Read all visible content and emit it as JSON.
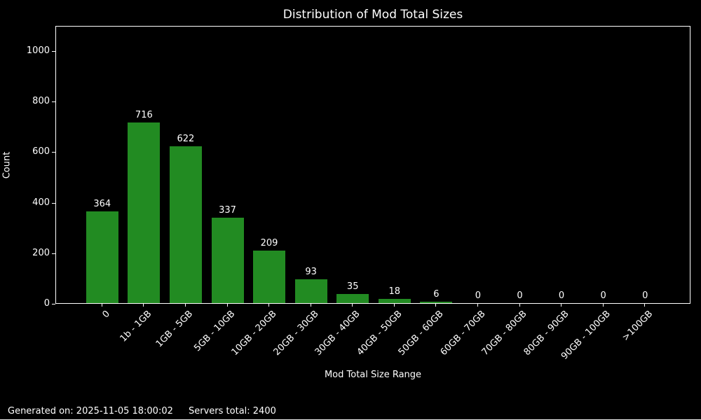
{
  "chart_data": {
    "type": "bar",
    "title": "Distribution of Mod Total Sizes",
    "xlabel": "Mod Total Size Range",
    "ylabel": "Count",
    "categories": [
      "0",
      "1b - 1GB",
      "1GB - 5GB",
      "5GB - 10GB",
      "10GB - 20GB",
      "20GB - 30GB",
      "30GB - 40GB",
      "40GB - 50GB",
      "50GB - 60GB",
      "60GB - 70GB",
      "70GB - 80GB",
      "80GB - 90GB",
      "90GB - 100GB",
      ">100GB"
    ],
    "values": [
      364,
      716,
      622,
      337,
      209,
      93,
      35,
      18,
      6,
      0,
      0,
      0,
      0,
      0
    ],
    "yticks": [
      0,
      200,
      400,
      600,
      800,
      1000
    ],
    "ylim": [
      0,
      1100
    ],
    "grid": false,
    "legend": "none",
    "bar_color": "#228B22",
    "background_color": "#000000",
    "text_color": "#ffffff",
    "xtick_rotation": 45
  },
  "footer": {
    "generated": "Generated on: 2025-11-05 18:00:02",
    "servers_total": "Servers total: 2400"
  }
}
